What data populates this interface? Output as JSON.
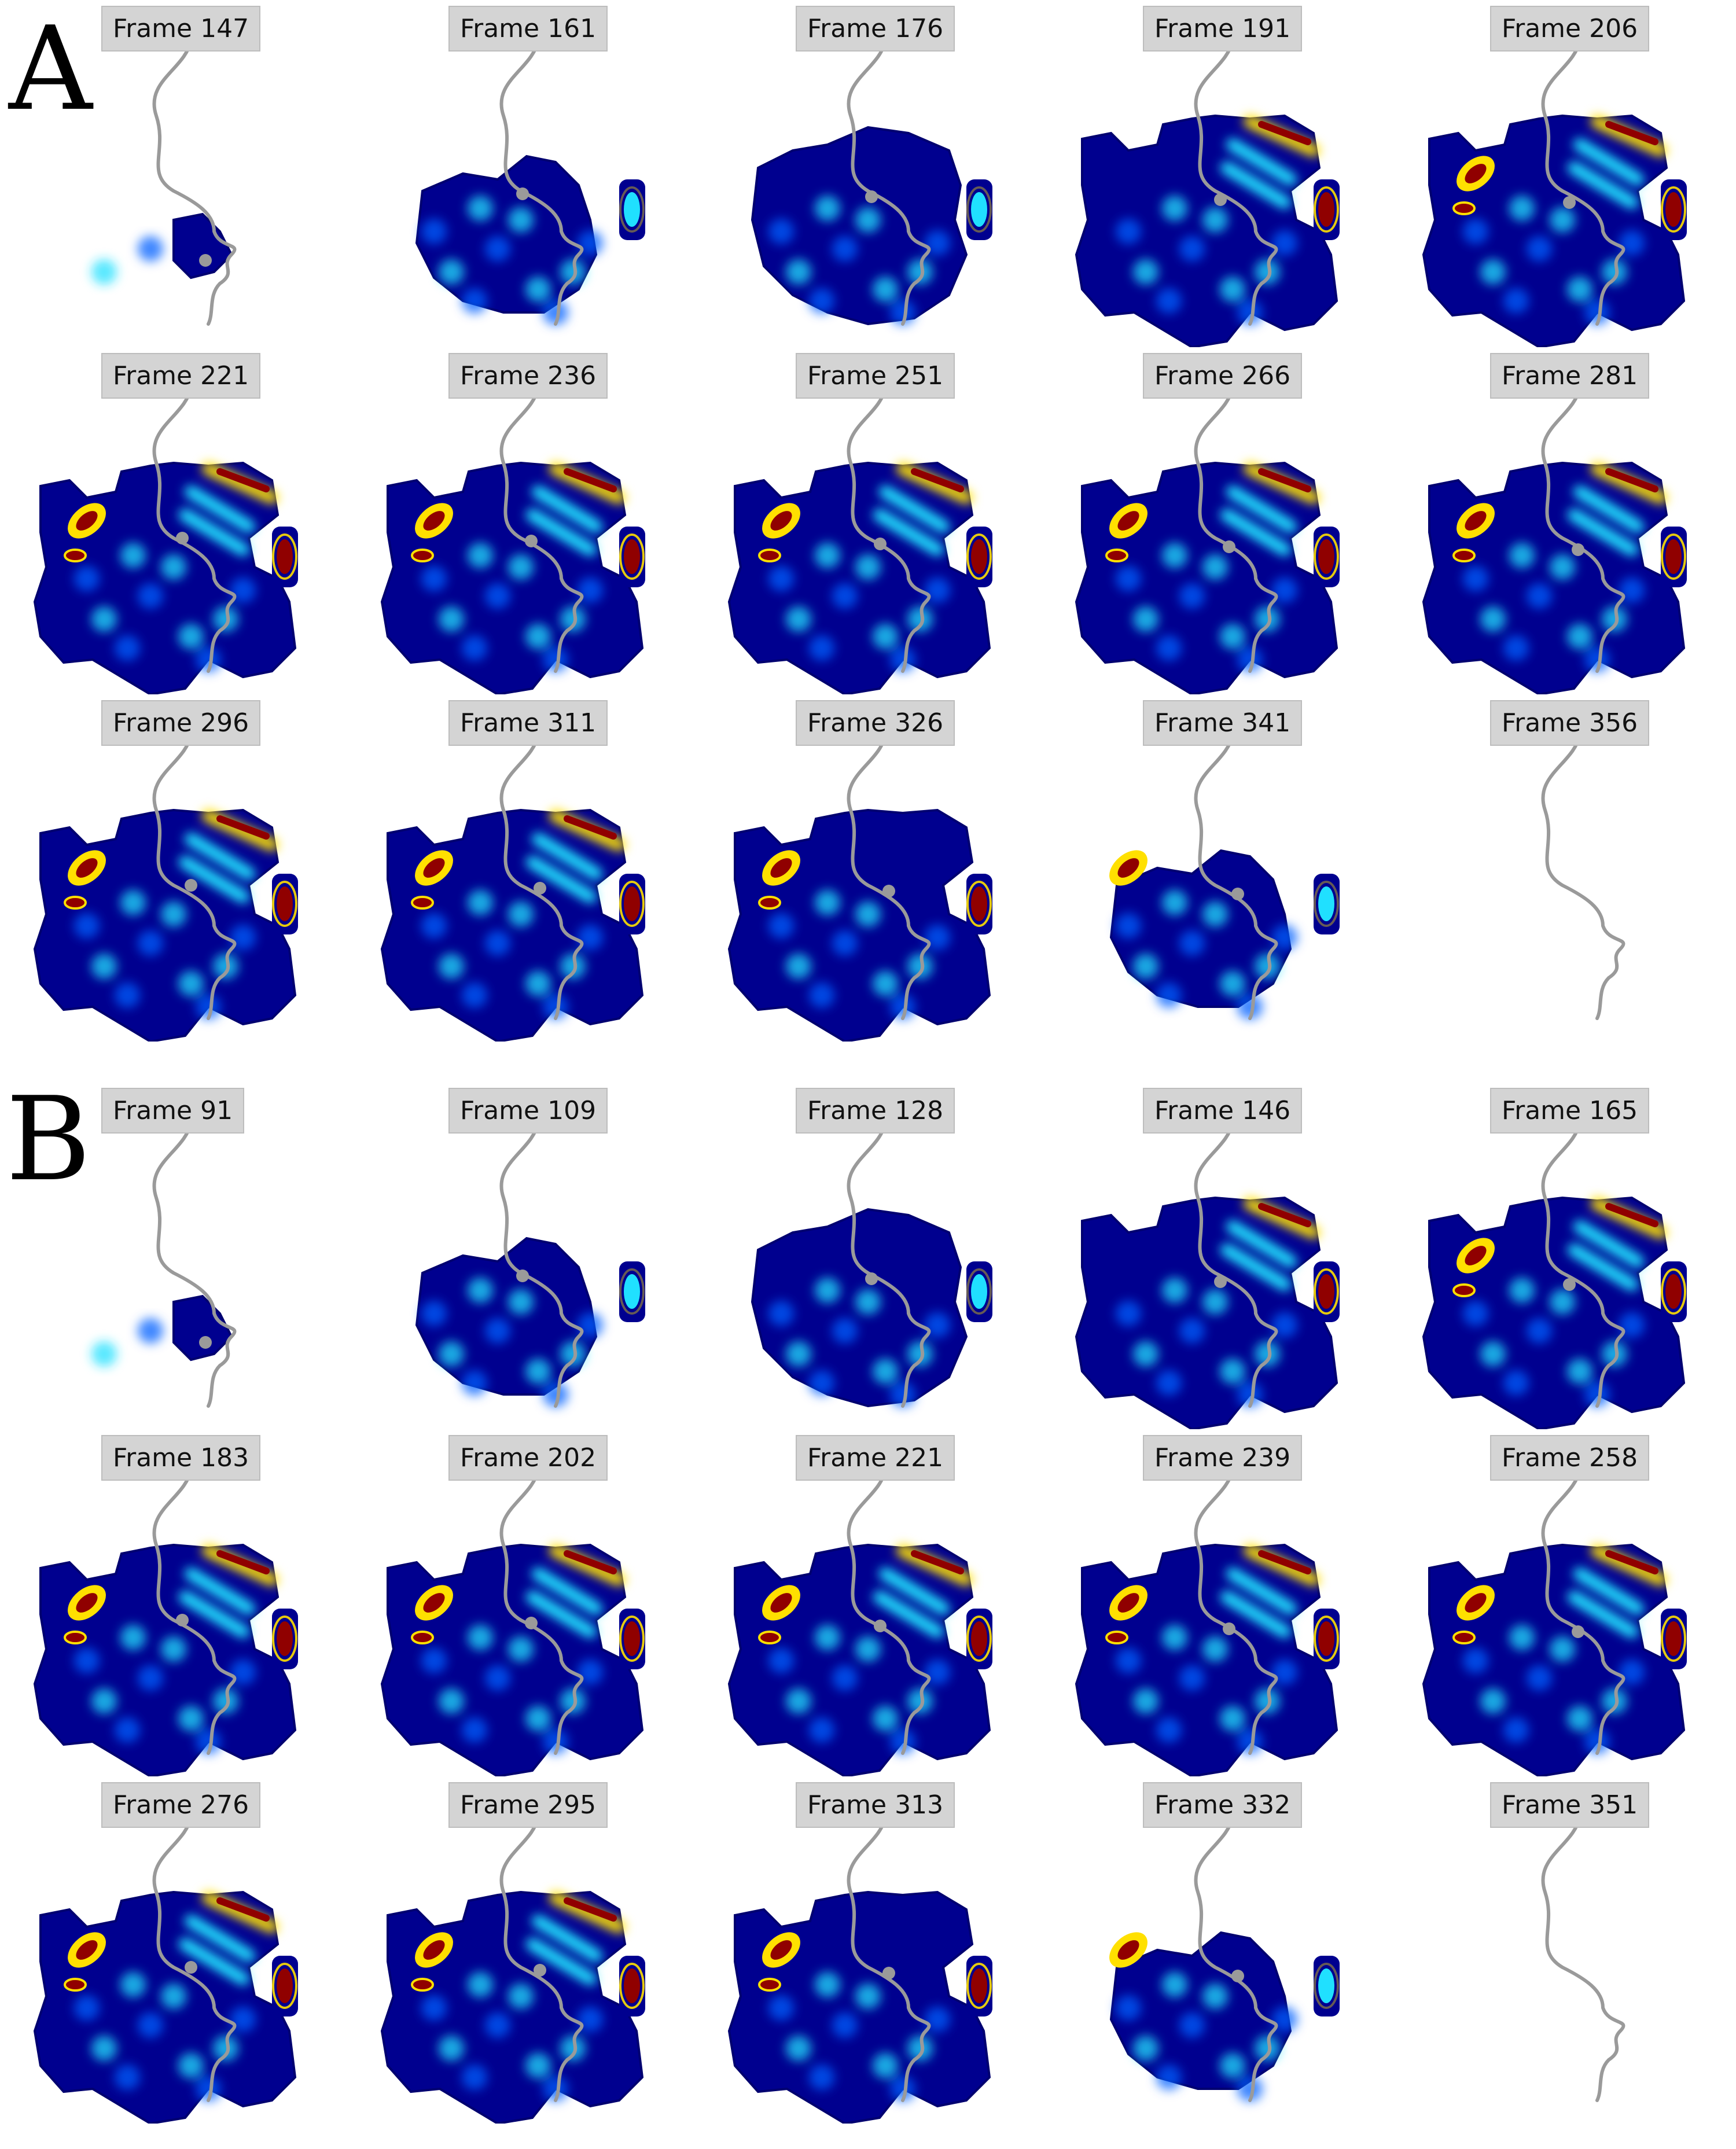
{
  "panels": [
    {
      "letter": "A",
      "frames": [
        "Frame 147",
        "Frame 161",
        "Frame 176",
        "Frame 191",
        "Frame 206",
        "Frame 221",
        "Frame 236",
        "Frame 251",
        "Frame 266",
        "Frame 281",
        "Frame 296",
        "Frame 311",
        "Frame 326",
        "Frame 341",
        "Frame 356"
      ]
    },
    {
      "letter": "B",
      "frames": [
        "Frame 91",
        "Frame 109",
        "Frame 128",
        "Frame 146",
        "Frame 165",
        "Frame 183",
        "Frame 202",
        "Frame 221",
        "Frame 239",
        "Frame 258",
        "Frame 276",
        "Frame 295",
        "Frame 313",
        "Frame 332",
        "Frame 351"
      ]
    }
  ],
  "colors": {
    "heat_low": "#00008f",
    "heat_mid": "#0060ff",
    "heat_cyan": "#20e0ff",
    "heat_yellow": "#ffe000",
    "heat_high": "#900000",
    "trajectory": "#9a9a9a",
    "label_bg": "#d4d4d4"
  }
}
